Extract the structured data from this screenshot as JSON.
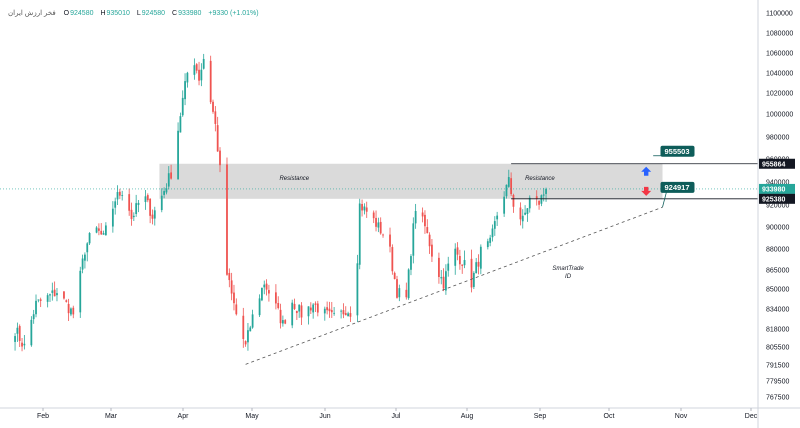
{
  "legend": {
    "symbol": "فخر ارزش ایران",
    "o_label": "O",
    "o_value": "924580",
    "h_label": "H",
    "h_value": "935010",
    "l_label": "L",
    "l_value": "924580",
    "c_label": "C",
    "c_value": "933980",
    "change": "+9330 (+1.01%)"
  },
  "colors": {
    "up": "#26a69a",
    "down": "#ef5350",
    "zone_fill": "#d6d6d6",
    "tag_dark": "#131722",
    "tag_teal": "#0e5d5a",
    "arrow_up": "#2962ff",
    "arrow_down": "#f23645"
  },
  "chart_data": {
    "type": "candlestick",
    "x_ticks": [
      "Feb",
      "Mar",
      "Apr",
      "May",
      "Jun",
      "Jul",
      "Aug",
      "Sep",
      "Oct",
      "Nov",
      "Dec"
    ],
    "y_ticks": [
      "1100000",
      "1080000",
      "1060000",
      "1040000",
      "1020000",
      "1000000",
      "980000",
      "960000",
      "940000",
      "920000",
      "900000",
      "880000",
      "865000",
      "850000",
      "834000",
      "818000",
      "805500",
      "791500",
      "779500",
      "767500"
    ],
    "resistance_zone": {
      "low": 925380,
      "high": 955864,
      "label_left": "Resistance",
      "label_right": "Resistance"
    },
    "price_tags": [
      {
        "id": "upper",
        "value": "955864"
      },
      {
        "id": "close",
        "value": "933980"
      },
      {
        "id": "lower",
        "value": "925380"
      }
    ],
    "callouts": [
      {
        "id": "upper",
        "value": "955503"
      },
      {
        "id": "lower",
        "value": "924917"
      }
    ],
    "trendline": {
      "start": {
        "date": "2024-04-28",
        "price": 792000
      },
      "end": {
        "date": "2024-10-24",
        "price": 918000
      }
    },
    "watermark": [
      "SmartTrade",
      "ID"
    ],
    "waypoints": [
      [
        "2024-01-20",
        818000
      ],
      [
        "2024-01-24",
        805500
      ],
      [
        "2024-01-29",
        838000
      ],
      [
        "2024-02-02",
        842000
      ],
      [
        "2024-02-07",
        848000
      ],
      [
        "2024-02-14",
        830000
      ],
      [
        "2024-02-19",
        880000
      ],
      [
        "2024-02-23",
        900000
      ],
      [
        "2024-02-27",
        890000
      ],
      [
        "2024-03-03",
        925000
      ],
      [
        "2024-03-07",
        935000
      ],
      [
        "2024-03-10",
        908000
      ],
      [
        "2024-03-15",
        930000
      ],
      [
        "2024-03-19",
        910000
      ],
      [
        "2024-03-23",
        928000
      ],
      [
        "2024-03-27",
        948000
      ],
      [
        "2024-03-31",
        1000000
      ],
      [
        "2024-04-03",
        1040000
      ],
      [
        "2024-04-06",
        1052000
      ],
      [
        "2024-04-08",
        1035000
      ],
      [
        "2024-04-10",
        1055000
      ],
      [
        "2024-04-12",
        1025000
      ],
      [
        "2024-04-15",
        990000
      ],
      [
        "2024-04-17",
        950000
      ],
      [
        "2024-04-19",
        870000
      ],
      [
        "2024-04-22",
        845000
      ],
      [
        "2024-04-25",
        822000
      ],
      [
        "2024-04-28",
        805500
      ],
      [
        "2024-05-02",
        835000
      ],
      [
        "2024-05-06",
        855000
      ],
      [
        "2024-05-10",
        840000
      ],
      [
        "2024-05-14",
        822000
      ],
      [
        "2024-05-18",
        840000
      ],
      [
        "2024-05-22",
        830000
      ],
      [
        "2024-05-27",
        838000
      ],
      [
        "2024-06-01",
        830000
      ],
      [
        "2024-06-06",
        826000
      ],
      [
        "2024-06-10",
        834000
      ],
      [
        "2024-06-14",
        830000
      ],
      [
        "2024-06-16",
        920000
      ],
      [
        "2024-06-20",
        912000
      ],
      [
        "2024-06-24",
        900000
      ],
      [
        "2024-06-28",
        888000
      ],
      [
        "2024-07-02",
        848000
      ],
      [
        "2024-07-06",
        842000
      ],
      [
        "2024-07-10",
        918000
      ],
      [
        "2024-07-14",
        900000
      ],
      [
        "2024-07-18",
        870000
      ],
      [
        "2024-07-22",
        855000
      ],
      [
        "2024-07-26",
        880000
      ],
      [
        "2024-07-30",
        872000
      ],
      [
        "2024-08-03",
        855000
      ],
      [
        "2024-08-07",
        878000
      ],
      [
        "2024-08-11",
        885000
      ],
      [
        "2024-08-15",
        920000
      ],
      [
        "2024-08-19",
        940000
      ],
      [
        "2024-08-22",
        912000
      ],
      [
        "2024-08-25",
        906000
      ],
      [
        "2024-08-28",
        925000
      ],
      [
        "2024-09-01",
        922000
      ],
      [
        "2024-09-04",
        933980
      ]
    ]
  }
}
